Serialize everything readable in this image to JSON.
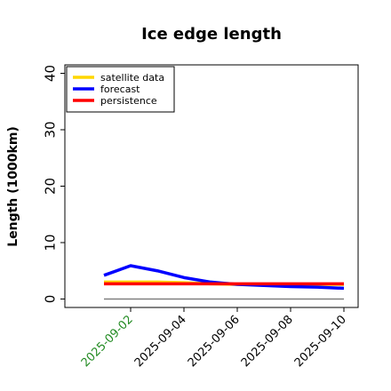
{
  "chart_data": {
    "type": "line",
    "title": "Ice edge length",
    "xlabel": "",
    "ylabel": "Length (1000km)",
    "ylim": [
      -1.5,
      41.5
    ],
    "yticks": [
      0,
      10,
      20,
      30,
      40
    ],
    "x": [
      "2025-09-01",
      "2025-09-02",
      "2025-09-03",
      "2025-09-04",
      "2025-09-05",
      "2025-09-06",
      "2025-09-07",
      "2025-09-08",
      "2025-09-09",
      "2025-09-10"
    ],
    "xtick_labels": [
      "2025-09-02",
      "2025-09-04",
      "2025-09-06",
      "2025-09-08",
      "2025-09-10"
    ],
    "xtick_colors": [
      "#228b22",
      "#000000",
      "#000000",
      "#000000",
      "#000000"
    ],
    "reference_line": {
      "value": 0,
      "color": "#808080"
    },
    "legend_position": "top-left",
    "grid": false,
    "series": [
      {
        "name": "satellite data",
        "color": "#ffd700",
        "values": [
          3.0,
          3.0,
          3.0,
          2.9,
          2.7,
          2.6,
          2.6,
          2.6,
          2.6,
          2.6
        ]
      },
      {
        "name": "forecast",
        "color": "#0000ff",
        "values": [
          4.2,
          5.9,
          5.0,
          3.8,
          3.0,
          2.6,
          2.4,
          2.2,
          2.1,
          1.9
        ]
      },
      {
        "name": "persistence",
        "color": "#ff0000",
        "values": [
          2.7,
          2.7,
          2.7,
          2.7,
          2.7,
          2.7,
          2.7,
          2.7,
          2.7,
          2.7
        ]
      }
    ]
  }
}
